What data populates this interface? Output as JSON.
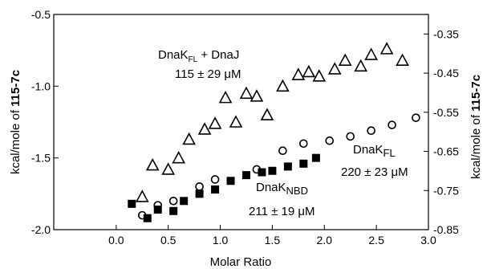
{
  "chart_data": {
    "type": "scatter",
    "xlabel": "Molar Ratio",
    "ylabel_left": "kcal/mole of 115-7c",
    "ylabel_left_prefix": "kcal/mole of ",
    "ylabel_left_bold": "115-7c",
    "ylabel_right": "kcal/mole of 115-7c",
    "ylabel_right_prefix": "kcal/mole of ",
    "ylabel_right_bold": "115-7c",
    "xlim": [
      -0.6,
      3.0
    ],
    "ylim_left": [
      -2.0,
      -0.5
    ],
    "ylim_right": [
      -0.85,
      -0.3
    ],
    "x_ticks": [
      "0.0",
      "0.5",
      "1.0",
      "1.5",
      "2.0",
      "2.5",
      "3.0"
    ],
    "x_tick_values": [
      0.0,
      0.5,
      1.0,
      1.5,
      2.0,
      2.5,
      3.0
    ],
    "y_left_ticks": [
      "-0.5",
      "-1.0",
      "-1.5",
      "-2.0"
    ],
    "y_left_tick_values": [
      -0.5,
      -1.0,
      -1.5,
      -2.0
    ],
    "y_right_ticks": [
      "-0.35",
      "-0.45",
      "-0.55",
      "-0.65",
      "-0.75",
      "-0.85"
    ],
    "y_right_tick_values": [
      -0.35,
      -0.45,
      -0.55,
      -0.65,
      -0.75,
      -0.85
    ],
    "grid": false,
    "series": [
      {
        "marker": "triangle",
        "axis": "left",
        "x": [
          0.25,
          0.35,
          0.5,
          0.6,
          0.7,
          0.85,
          0.95,
          1.05,
          1.15,
          1.25,
          1.35,
          1.45,
          1.6,
          1.75,
          1.85,
          1.95,
          2.1,
          2.2,
          2.35,
          2.45,
          2.6,
          2.75
        ],
        "y": [
          -1.77,
          -1.55,
          -1.58,
          -1.5,
          -1.37,
          -1.3,
          -1.26,
          -1.08,
          -1.25,
          -1.05,
          -1.07,
          -1.2,
          -1.0,
          -0.92,
          -0.9,
          -0.93,
          -0.88,
          -0.82,
          -0.86,
          -0.78,
          -0.74,
          -0.82
        ]
      },
      {
        "marker": "circle",
        "axis": "left",
        "x": [
          0.25,
          0.4,
          0.55,
          0.8,
          0.95,
          1.35,
          1.6,
          1.8,
          2.05,
          2.25,
          2.45,
          2.65,
          2.88
        ],
        "y": [
          -1.9,
          -1.83,
          -1.8,
          -1.7,
          -1.65,
          -1.58,
          -1.45,
          -1.4,
          -1.38,
          -1.35,
          -1.31,
          -1.27,
          -1.22
        ]
      },
      {
        "marker": "square",
        "axis": "left",
        "x": [
          0.15,
          0.3,
          0.4,
          0.55,
          0.65,
          0.8,
          0.95,
          1.1,
          1.25,
          1.4,
          1.5,
          1.65,
          1.8,
          1.92
        ],
        "y": [
          -1.82,
          -1.92,
          -1.86,
          -1.87,
          -1.8,
          -1.75,
          -1.72,
          -1.66,
          -1.62,
          -1.6,
          -1.59,
          -1.56,
          -1.54,
          -1.5
        ]
      }
    ],
    "annotations": [
      {
        "name": "DnaK",
        "subscript": "FL",
        "suffix": " + DnaJ",
        "value": "115 ± 29 μM"
      },
      {
        "name": "DnaK",
        "subscript": "FL",
        "suffix": "",
        "value": "220 ± 23 μM"
      },
      {
        "name": "DnaK",
        "subscript": "NBD",
        "suffix": "",
        "value": "211 ± 19 μM"
      }
    ]
  }
}
